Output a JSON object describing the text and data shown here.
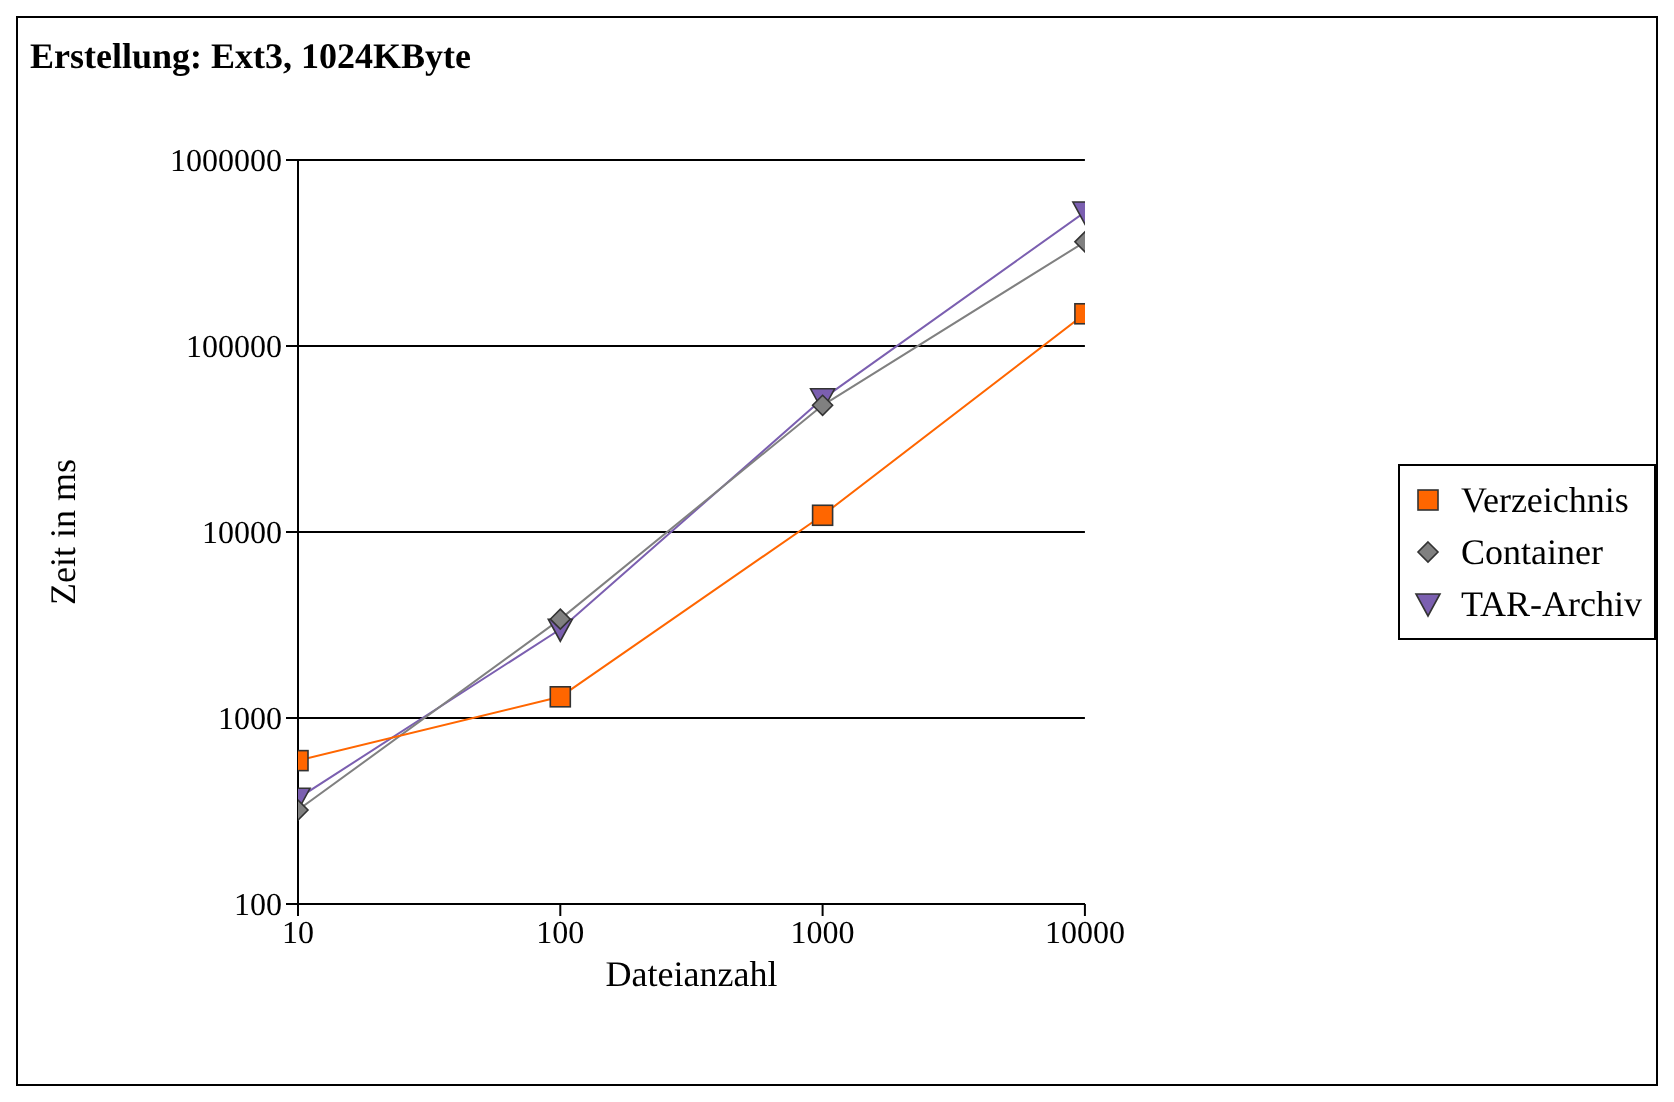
{
  "chart_data": {
    "type": "line",
    "title": "Erstellung: Ext3, 1024KByte",
    "xlabel": "Dateianzahl",
    "ylabel": "Zeit in ms",
    "log": "xy",
    "x": [
      10,
      100,
      1000,
      10000
    ],
    "xlim": [
      10,
      10000
    ],
    "xticks": [
      10,
      100,
      1000,
      10000
    ],
    "ylim": [
      100,
      1000000
    ],
    "yticks": [
      100,
      1000,
      10000,
      100000,
      1000000
    ],
    "grid": "y",
    "legend": "right",
    "series": [
      {
        "name": "Verzeichnis",
        "color": "#ff6600",
        "marker": "square",
        "values": [
          590,
          1300,
          12300,
          149000
        ]
      },
      {
        "name": "Container",
        "color": "#808080",
        "marker": "diamond",
        "values": [
          320,
          3400,
          48000,
          363000
        ]
      },
      {
        "name": "TAR-Archiv",
        "color": "#7b5fb0",
        "marker": "triangle",
        "values": [
          370,
          3000,
          52000,
          525000
        ]
      }
    ]
  }
}
